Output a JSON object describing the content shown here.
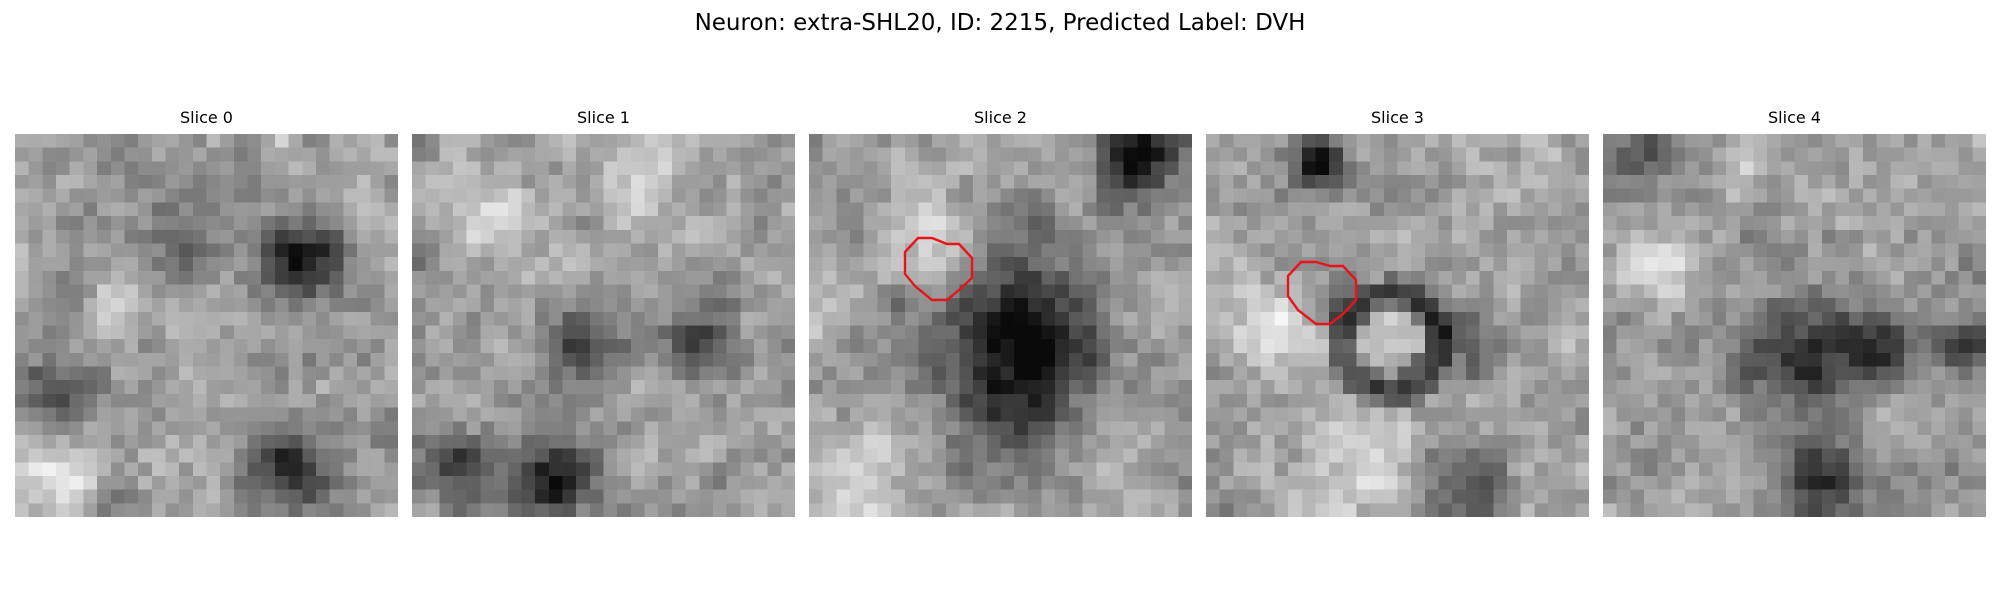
{
  "figure": {
    "title": "Neuron: extra-SHL20, ID: 2215, Predicted Label: DVH"
  },
  "panels": [
    {
      "title": "Slice 0",
      "has_roi": false
    },
    {
      "title": "Slice 1",
      "has_roi": false
    },
    {
      "title": "Slice 2",
      "has_roi": true
    },
    {
      "title": "Slice 3",
      "has_roi": true
    },
    {
      "title": "Slice 4",
      "has_roi": false
    }
  ],
  "colors": {
    "roi_contour": "#e8141a",
    "background": "#ffffff"
  },
  "image": {
    "colormap": "grayscale",
    "grid_cells": 28
  }
}
